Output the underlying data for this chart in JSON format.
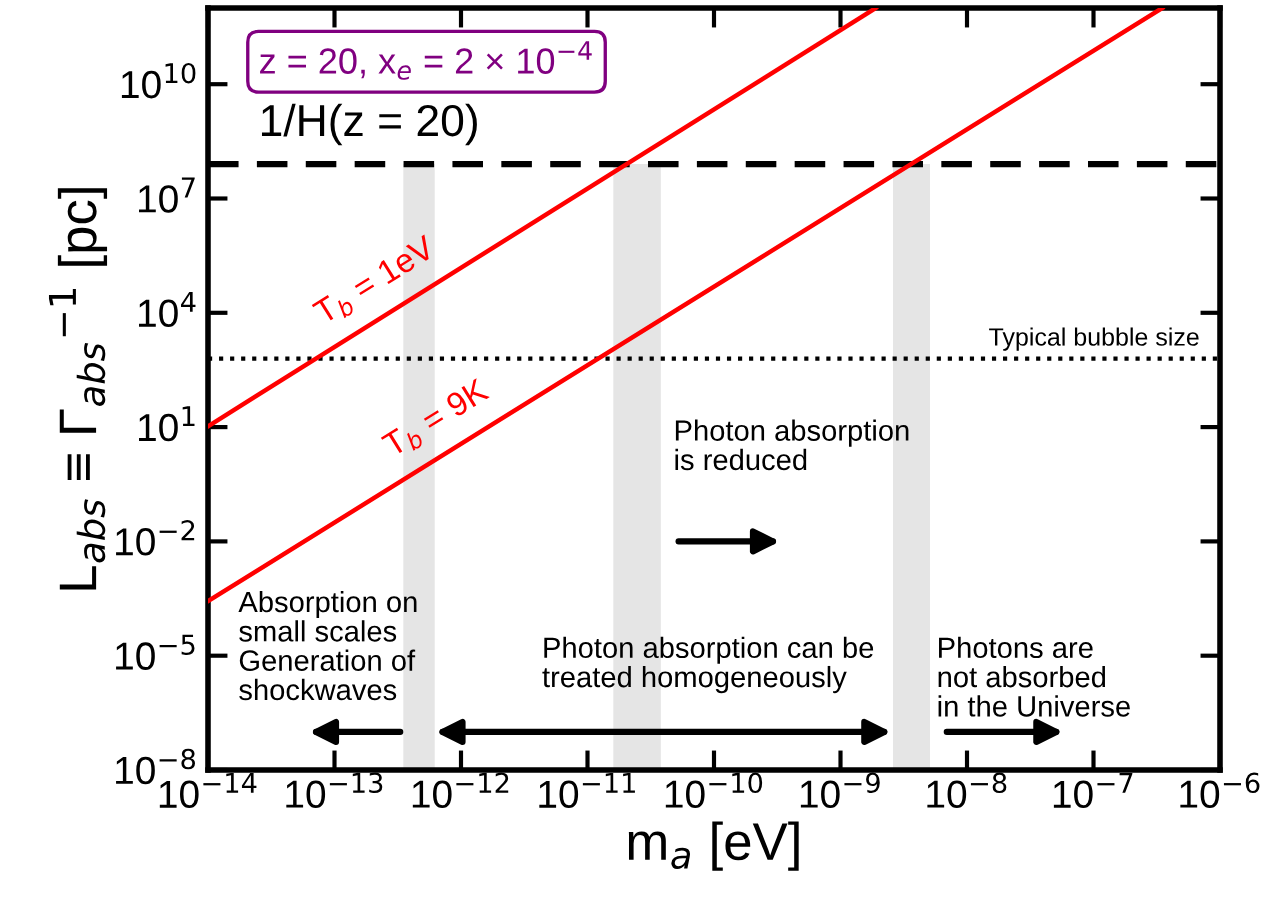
{
  "chart_data": {
    "type": "line",
    "xlabel": "m$_{a}$ [eV]",
    "ylabel": "L$_{abs}$ ≡ Γ$_{abs}$$^{−1}$ [pc]",
    "log": "xy",
    "xlim": [
      1e-14,
      1e-06
    ],
    "ylim": [
      1e-08,
      1000000000000.0
    ],
    "xticks": [
      {
        "value": 1e-14,
        "label": "10$^{−14}$"
      },
      {
        "value": 1e-13,
        "label": "10$^{−13}$"
      },
      {
        "value": 1e-12,
        "label": "10$^{−12}$"
      },
      {
        "value": 1e-11,
        "label": "10$^{−11}$"
      },
      {
        "value": 1e-10,
        "label": "10$^{−10}$"
      },
      {
        "value": 1e-09,
        "label": "10$^{−9}$"
      },
      {
        "value": 1e-08,
        "label": "10$^{−8}$"
      },
      {
        "value": 1e-07,
        "label": "10$^{−7}$"
      },
      {
        "value": 1e-06,
        "label": "10$^{−6}$"
      }
    ],
    "yticks": [
      {
        "value": 1e-08,
        "label": "10$^{−8}$"
      },
      {
        "value": 1e-05,
        "label": "10$^{−5}$"
      },
      {
        "value": 0.01,
        "label": "10$^{−2}$"
      },
      {
        "value": 10,
        "label": "10$^{1}$"
      },
      {
        "value": 10000,
        "label": "10$^{4}$"
      },
      {
        "value": 10000000.0,
        "label": "10$^{7}$"
      },
      {
        "value": 10000000000.0,
        "label": "10$^{10}$"
      }
    ],
    "series": [
      {
        "name": "T$_{b}$ = 1eV",
        "color": "#ff0000",
        "x": [
          1e-14,
          1.9e-09
        ],
        "values": [
          10.5,
          1000000000000.0
        ]
      },
      {
        "name": "T$_{b}$ = 9K",
        "color": "#ff0000",
        "x": [
          1e-14,
          3.5e-07
        ],
        "values": [
          0.00027,
          1000000000000.0
        ]
      }
    ],
    "ref_lines": [
      {
        "axis": "y",
        "value": 80000000.0,
        "color": "#000000",
        "line_style": "dashed"
      },
      {
        "axis": "y",
        "value": 630,
        "label": "Typical bubble size",
        "color": "#000000",
        "line_style": "dotted"
      }
    ],
    "bands": [
      {
        "axis": "x",
        "from": 3.5e-13,
        "to": 6.2e-13,
        "color": "#e5e5e5"
      },
      {
        "axis": "x",
        "from": 1.6e-11,
        "to": 3.8e-11,
        "color": "#e5e5e5"
      },
      {
        "axis": "x",
        "from": 2.6e-09,
        "to": 5.1e-09,
        "color": "#e5e5e5"
      }
    ],
    "annotations": [
      "z = 20, x$_{e}$ = 2 × 10$^{−4}$",
      "Absorption on\nsmall scales\nGeneration of\nshockwaves",
      "Photon absorption can be\ntreated homogeneously",
      "Photons are\nnot absorbed\nin the Universe",
      "Photon absorption\nis reduced",
      "1/H(z = 20)"
    ],
    "grid": false,
    "legend": false
  }
}
